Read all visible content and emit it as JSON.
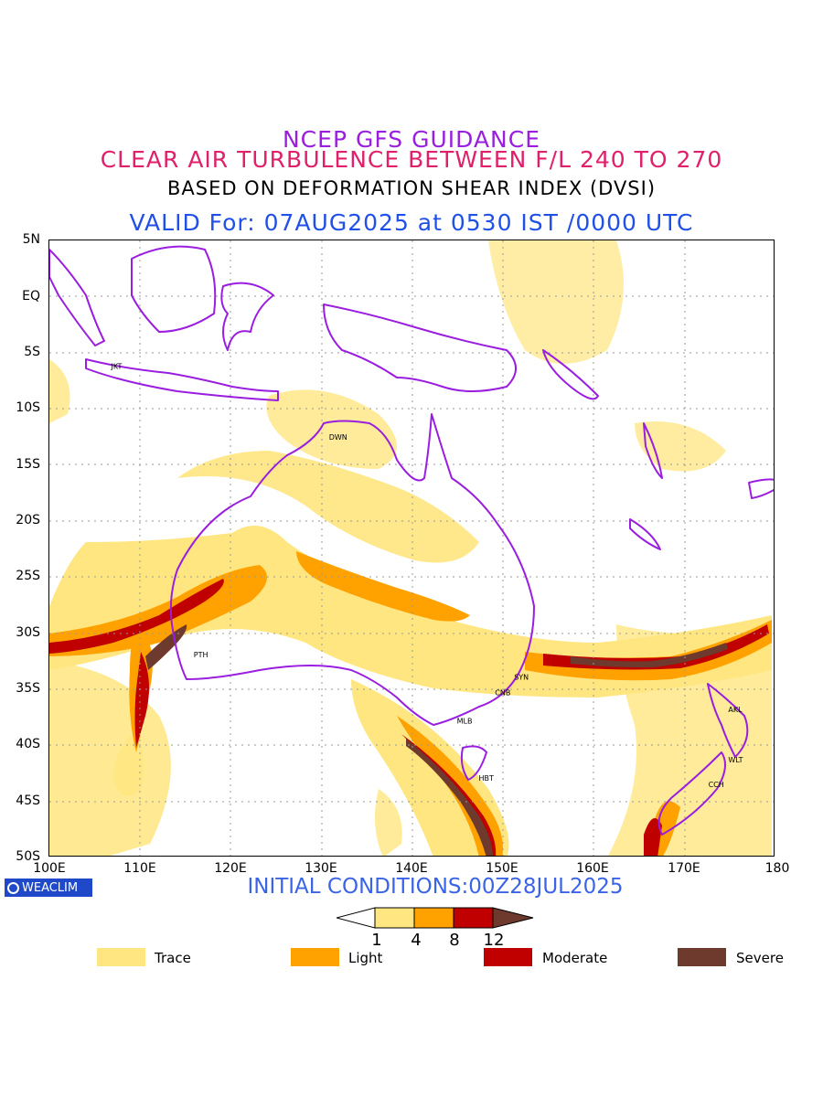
{
  "titles": {
    "line1": "NCEP GFS GUIDANCE",
    "line2": "CLEAR AIR TURBULENCE BETWEEN F/L 240 TO 270",
    "line3": "BASED ON DEFORMATION SHEAR INDEX (DVSI)",
    "line4": "VALID For: 07AUG2025 at 0530 IST /0000 UTC"
  },
  "map": {
    "lat_labels": [
      "5N",
      "EQ",
      "5S",
      "10S",
      "15S",
      "20S",
      "25S",
      "30S",
      "35S",
      "40S",
      "45S",
      "50S"
    ],
    "lon_labels": [
      "100E",
      "110E",
      "120E",
      "130E",
      "140E",
      "150E",
      "160E",
      "170E",
      "180"
    ],
    "cities": [
      {
        "code": "JKT",
        "lon": 106.8,
        "lat": -6.2
      },
      {
        "code": "DWN",
        "lon": 130.8,
        "lat": -12.5
      },
      {
        "code": "PTH",
        "lon": 115.9,
        "lat": -31.9
      },
      {
        "code": "SYN",
        "lon": 151.2,
        "lat": -33.9
      },
      {
        "code": "CNB",
        "lon": 149.1,
        "lat": -35.3
      },
      {
        "code": "MLB",
        "lon": 144.9,
        "lat": -37.8
      },
      {
        "code": "HBT",
        "lon": 147.3,
        "lat": -42.9
      },
      {
        "code": "AKL",
        "lon": 174.8,
        "lat": -36.8
      },
      {
        "code": "WLT",
        "lon": 174.8,
        "lat": -41.3
      },
      {
        "code": "CCH",
        "lon": 172.6,
        "lat": -43.5
      }
    ]
  },
  "logo": "WEACLIM",
  "initial": "INITIAL CONDITIONS:00Z28JUL2025",
  "colorbar": {
    "ticks": [
      "1",
      "4",
      "8",
      "12"
    ],
    "colors": [
      "#ffe680",
      "#ffa200",
      "#c00000",
      "#6e3a2e"
    ]
  },
  "legend": [
    {
      "label": "Trace",
      "color": "#ffe680"
    },
    {
      "label": "Light",
      "color": "#ffa200"
    },
    {
      "label": "Moderate",
      "color": "#c00000"
    },
    {
      "label": "Severe",
      "color": "#6e3a2e"
    }
  ],
  "colors": {
    "coastline": "#9a1ee0",
    "grid": "#999999"
  }
}
